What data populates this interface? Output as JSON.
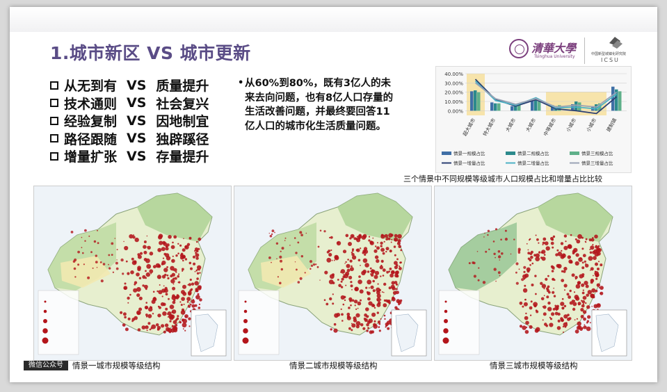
{
  "slide": {
    "title": "1.城市新区 VS 城市更新",
    "university_cn": "清華大學",
    "university_en": "Tsinghua University",
    "institute_cn": "中国新型城镇化研究院",
    "institute_en": "ICSU"
  },
  "checklist": [
    {
      "left": "从无到有",
      "vs": "VS",
      "right": "质量提升"
    },
    {
      "left": "技术通则",
      "vs": "VS",
      "right": "社会复兴"
    },
    {
      "left": "经验复制",
      "vs": "VS",
      "right": "因地制宜"
    },
    {
      "left": "路径跟随",
      "vs": "VS",
      "right": "独辟蹊径"
    },
    {
      "left": "增量扩张",
      "vs": "VS",
      "right": "存量提升"
    }
  ],
  "bullet": {
    "marker": "•",
    "text": "从60%到80%，既有3亿人的未来去向问题，也有8亿人口存量的生活改善问题，并最终要回答11亿人口的城市化生活质量问题。"
  },
  "chart_data": {
    "type": "bar",
    "title": "",
    "categories": [
      "超大城市",
      "特大城市",
      "大城市",
      "大城市",
      "中等城市",
      "小城市",
      "小城市",
      "建制镇"
    ],
    "ytick_labels": [
      "40.00%",
      "30.00%",
      "20.00%",
      "10.00%",
      "0.00%"
    ],
    "ylim": [
      -5,
      40
    ],
    "grid": true,
    "legend_position": "bottom",
    "series": [
      {
        "name": "情景一规模占比",
        "kind": "bar",
        "color": "#3f6fa6",
        "values": [
          21,
          9,
          5,
          11,
          6,
          7,
          5,
          26
        ]
      },
      {
        "name": "情景二规模占比",
        "kind": "bar",
        "color": "#2c8a8c",
        "values": [
          22,
          8,
          6,
          12,
          5,
          10,
          7,
          23
        ]
      },
      {
        "name": "情景三规模占比",
        "kind": "bar",
        "color": "#5fb08a",
        "values": [
          20,
          8,
          7,
          10,
          6,
          9,
          8,
          21
        ]
      },
      {
        "name": "情景一增量占比",
        "kind": "line",
        "color": "#2b3f72",
        "values": [
          34,
          12,
          5,
          12,
          2,
          0,
          -3,
          15
        ]
      },
      {
        "name": "情景二增量占比",
        "kind": "line",
        "color": "#4db2c4",
        "values": [
          32,
          11,
          6,
          14,
          3,
          4,
          2,
          18
        ]
      },
      {
        "name": "情景三增量占比",
        "kind": "line",
        "color": "#9aa3b5",
        "values": [
          30,
          13,
          7,
          13,
          4,
          6,
          4,
          20
        ]
      }
    ]
  },
  "chart_caption": "三个情景中不同规模等级城市人口规模占比和增量占比比较",
  "maps": [
    {
      "caption": "情景一城市规模等级结构"
    },
    {
      "caption": "情景二城市规模等级结构"
    },
    {
      "caption": "情景三城市规模等级结构"
    }
  ],
  "watermark": "微信公众号"
}
